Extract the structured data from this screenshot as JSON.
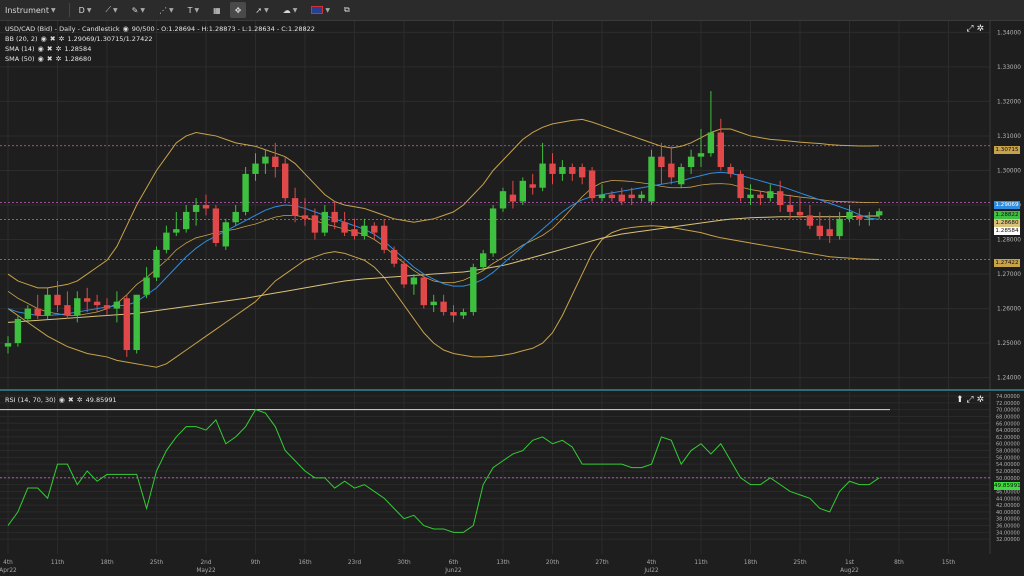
{
  "toolbar": {
    "instrument_label": "Instrument",
    "interval_label": "D",
    "icons": [
      "draw-line-icon",
      "pencil-icon",
      "pattern-icon",
      "text-icon",
      "layout-icon",
      "crosshair-icon",
      "arrow-icon",
      "cloud-icon",
      "flag-uk-icon",
      "screenshot-icon"
    ]
  },
  "legend": {
    "instrument": "USD/CAD (Bid) - Daily - Candlestick",
    "ohlc": "90/500 - O:1.28694 - H:1.28873 - L:1.28634 - C:1.28822",
    "bb_label": "BB (20, 2)",
    "bb_values": "1.29069/1.30715/1.27422",
    "sma14_label": "SMA (14)",
    "sma14_value": "1.28584",
    "sma50_label": "SMA (50)",
    "sma50_value": "1.28680"
  },
  "rsi_legend": {
    "label": "RSI (14, 70, 30)",
    "value": "49.85991"
  },
  "price_tags": {
    "bb_upper": "1.30715",
    "bb_mid": "1.29069",
    "close": "1.28822",
    "sma50": "1.28680",
    "sma14": "1.28584",
    "bb_lower": "1.27422",
    "rsi": "49.85991"
  },
  "colors": {
    "up": "#3fbf3f",
    "down": "#e0484a",
    "bb": "#c8a24a",
    "sma14": "#2f8de0",
    "sma50": "#d9c27a",
    "rsi": "#33cc33",
    "guide": "#c060c0"
  },
  "chart_data": {
    "type": "candlestick",
    "y_ticks": [
      "1.34000",
      "1.33000",
      "1.32000",
      "1.31000",
      "1.30000",
      "1.29000",
      "1.28000",
      "1.27000",
      "1.26000",
      "1.25000",
      "1.24000"
    ],
    "ylim": [
      1.237,
      1.343
    ],
    "x_ticks": [
      {
        "label": "4th",
        "sub": "Apr22",
        "i": 0
      },
      {
        "label": "11th",
        "i": 5
      },
      {
        "label": "18th",
        "i": 10
      },
      {
        "label": "25th",
        "i": 15
      },
      {
        "label": "2nd",
        "sub": "May22",
        "i": 20
      },
      {
        "label": "9th",
        "i": 25
      },
      {
        "label": "16th",
        "i": 30
      },
      {
        "label": "23rd",
        "i": 35
      },
      {
        "label": "30th",
        "i": 40
      },
      {
        "label": "6th",
        "sub": "Jun22",
        "i": 45
      },
      {
        "label": "13th",
        "i": 50
      },
      {
        "label": "20th",
        "i": 55
      },
      {
        "label": "27th",
        "i": 60
      },
      {
        "label": "4th",
        "sub": "Jul22",
        "i": 65
      },
      {
        "label": "11th",
        "i": 70
      },
      {
        "label": "18th",
        "i": 75
      },
      {
        "label": "25th",
        "i": 80
      },
      {
        "label": "1st",
        "sub": "Aug22",
        "i": 85
      },
      {
        "label": "8th",
        "i": 90
      },
      {
        "label": "15th",
        "i": 95
      }
    ],
    "candles": [
      [
        1.249,
        1.252,
        1.247,
        1.25
      ],
      [
        1.25,
        1.258,
        1.249,
        1.257
      ],
      [
        1.257,
        1.261,
        1.256,
        1.26
      ],
      [
        1.26,
        1.264,
        1.257,
        1.258
      ],
      [
        1.258,
        1.266,
        1.257,
        1.264
      ],
      [
        1.264,
        1.268,
        1.259,
        1.261
      ],
      [
        1.261,
        1.265,
        1.257,
        1.258
      ],
      [
        1.258,
        1.265,
        1.256,
        1.263
      ],
      [
        1.263,
        1.266,
        1.259,
        1.262
      ],
      [
        1.262,
        1.264,
        1.259,
        1.261
      ],
      [
        1.261,
        1.263,
        1.258,
        1.26
      ],
      [
        1.26,
        1.265,
        1.256,
        1.262
      ],
      [
        1.263,
        1.264,
        1.246,
        1.248
      ],
      [
        1.248,
        1.264,
        1.247,
        1.264
      ],
      [
        1.264,
        1.272,
        1.263,
        1.269
      ],
      [
        1.269,
        1.278,
        1.268,
        1.277
      ],
      [
        1.277,
        1.284,
        1.276,
        1.282
      ],
      [
        1.282,
        1.288,
        1.281,
        1.283
      ],
      [
        1.283,
        1.29,
        1.282,
        1.288
      ],
      [
        1.288,
        1.292,
        1.284,
        1.29
      ],
      [
        1.29,
        1.293,
        1.287,
        1.289
      ],
      [
        1.289,
        1.29,
        1.278,
        1.279
      ],
      [
        1.278,
        1.286,
        1.277,
        1.285
      ],
      [
        1.285,
        1.29,
        1.284,
        1.288
      ],
      [
        1.288,
        1.301,
        1.287,
        1.299
      ],
      [
        1.299,
        1.305,
        1.297,
        1.302
      ],
      [
        1.302,
        1.306,
        1.299,
        1.304
      ],
      [
        1.304,
        1.308,
        1.298,
        1.301
      ],
      [
        1.302,
        1.304,
        1.291,
        1.292
      ],
      [
        1.292,
        1.295,
        1.285,
        1.287
      ],
      [
        1.287,
        1.292,
        1.284,
        1.286
      ],
      [
        1.287,
        1.289,
        1.28,
        1.282
      ],
      [
        1.282,
        1.29,
        1.281,
        1.288
      ],
      [
        1.288,
        1.291,
        1.283,
        1.285
      ],
      [
        1.285,
        1.288,
        1.281,
        1.282
      ],
      [
        1.283,
        1.286,
        1.28,
        1.281
      ],
      [
        1.281,
        1.286,
        1.28,
        1.284
      ],
      [
        1.284,
        1.285,
        1.28,
        1.282
      ],
      [
        1.284,
        1.286,
        1.276,
        1.277
      ],
      [
        1.277,
        1.278,
        1.272,
        1.273
      ],
      [
        1.273,
        1.274,
        1.266,
        1.267
      ],
      [
        1.267,
        1.27,
        1.264,
        1.269
      ],
      [
        1.269,
        1.27,
        1.26,
        1.261
      ],
      [
        1.261,
        1.264,
        1.259,
        1.262
      ],
      [
        1.262,
        1.264,
        1.258,
        1.259
      ],
      [
        1.259,
        1.261,
        1.256,
        1.258
      ],
      [
        1.258,
        1.26,
        1.257,
        1.259
      ],
      [
        1.259,
        1.273,
        1.258,
        1.272
      ],
      [
        1.272,
        1.277,
        1.271,
        1.276
      ],
      [
        1.276,
        1.29,
        1.275,
        1.289
      ],
      [
        1.289,
        1.295,
        1.288,
        1.294
      ],
      [
        1.293,
        1.297,
        1.289,
        1.291
      ],
      [
        1.291,
        1.298,
        1.29,
        1.297
      ],
      [
        1.296,
        1.299,
        1.293,
        1.295
      ],
      [
        1.295,
        1.308,
        1.294,
        1.302
      ],
      [
        1.302,
        1.305,
        1.296,
        1.299
      ],
      [
        1.299,
        1.303,
        1.297,
        1.301
      ],
      [
        1.301,
        1.302,
        1.297,
        1.299
      ],
      [
        1.301,
        1.302,
        1.296,
        1.298
      ],
      [
        1.3,
        1.301,
        1.291,
        1.292
      ],
      [
        1.292,
        1.296,
        1.291,
        1.293
      ],
      [
        1.293,
        1.294,
        1.291,
        1.292
      ],
      [
        1.293,
        1.295,
        1.29,
        1.291
      ],
      [
        1.293,
        1.295,
        1.29,
        1.292
      ],
      [
        1.292,
        1.294,
        1.291,
        1.293
      ],
      [
        1.291,
        1.306,
        1.29,
        1.304
      ],
      [
        1.304,
        1.308,
        1.296,
        1.301
      ],
      [
        1.302,
        1.307,
        1.296,
        1.298
      ],
      [
        1.296,
        1.302,
        1.295,
        1.301
      ],
      [
        1.301,
        1.306,
        1.299,
        1.304
      ],
      [
        1.304,
        1.312,
        1.301,
        1.305
      ],
      [
        1.305,
        1.323,
        1.304,
        1.311
      ],
      [
        1.311,
        1.315,
        1.3,
        1.301
      ],
      [
        1.301,
        1.302,
        1.298,
        1.299
      ],
      [
        1.299,
        1.3,
        1.291,
        1.292
      ],
      [
        1.292,
        1.296,
        1.29,
        1.293
      ],
      [
        1.293,
        1.294,
        1.29,
        1.292
      ],
      [
        1.292,
        1.296,
        1.291,
        1.294
      ],
      [
        1.294,
        1.297,
        1.288,
        1.29
      ],
      [
        1.29,
        1.293,
        1.286,
        1.288
      ],
      [
        1.288,
        1.292,
        1.286,
        1.287
      ],
      [
        1.287,
        1.29,
        1.283,
        1.284
      ],
      [
        1.284,
        1.288,
        1.28,
        1.281
      ],
      [
        1.283,
        1.287,
        1.279,
        1.281
      ],
      [
        1.281,
        1.288,
        1.28,
        1.286
      ],
      [
        1.286,
        1.29,
        1.285,
        1.288
      ],
      [
        1.287,
        1.289,
        1.284,
        1.286
      ],
      [
        1.286,
        1.288,
        1.284,
        1.286
      ],
      [
        1.287,
        1.289,
        1.286,
        1.2882
      ]
    ],
    "bb_upper": [
      1.27,
      1.268,
      1.267,
      1.266,
      1.266,
      1.2665,
      1.267,
      1.268,
      1.27,
      1.272,
      1.274,
      1.278,
      1.284,
      1.29,
      1.295,
      1.3,
      1.304,
      1.308,
      1.31,
      1.311,
      1.3105,
      1.31,
      1.309,
      1.308,
      1.3075,
      1.307,
      1.306,
      1.305,
      1.304,
      1.302,
      1.299,
      1.296,
      1.293,
      1.291,
      1.29,
      1.2895,
      1.289,
      1.288,
      1.287,
      1.286,
      1.2855,
      1.285,
      1.2855,
      1.286,
      1.287,
      1.288,
      1.29,
      1.293,
      1.296,
      1.3,
      1.303,
      1.306,
      1.309,
      1.311,
      1.3125,
      1.3135,
      1.314,
      1.3145,
      1.3148,
      1.314,
      1.313,
      1.312,
      1.311,
      1.31,
      1.309,
      1.308,
      1.307,
      1.3065,
      1.307,
      1.308,
      1.3095,
      1.311,
      1.312,
      1.312,
      1.311,
      1.31,
      1.3095,
      1.309,
      1.3088,
      1.3085,
      1.3082,
      1.308,
      1.3078,
      1.3075,
      1.3073,
      1.3072,
      1.3071,
      1.3071,
      1.30715
    ],
    "bb_lower": [
      1.26,
      1.258,
      1.256,
      1.254,
      1.252,
      1.2505,
      1.249,
      1.248,
      1.247,
      1.2465,
      1.246,
      1.245,
      1.2445,
      1.244,
      1.2435,
      1.243,
      1.244,
      1.246,
      1.248,
      1.25,
      1.252,
      1.254,
      1.256,
      1.258,
      1.26,
      1.262,
      1.265,
      1.268,
      1.27,
      1.272,
      1.274,
      1.275,
      1.276,
      1.2765,
      1.276,
      1.275,
      1.274,
      1.272,
      1.269,
      1.265,
      1.261,
      1.257,
      1.253,
      1.25,
      1.248,
      1.247,
      1.2465,
      1.246,
      1.246,
      1.2462,
      1.2465,
      1.247,
      1.2478,
      1.2485,
      1.25,
      1.253,
      1.258,
      1.264,
      1.27,
      1.276,
      1.28,
      1.282,
      1.283,
      1.2835,
      1.2838,
      1.284,
      1.2838,
      1.2835,
      1.283,
      1.2825,
      1.282,
      1.2812,
      1.2805,
      1.28,
      1.2795,
      1.279,
      1.2785,
      1.278,
      1.2775,
      1.277,
      1.2765,
      1.276,
      1.2755,
      1.275,
      1.2748,
      1.2746,
      1.2744,
      1.2743,
      1.27422
    ],
    "bb_mid": [
      1.265,
      1.263,
      1.2615,
      1.26,
      1.259,
      1.2585,
      1.258,
      1.258,
      1.2585,
      1.259,
      1.26,
      1.2615,
      1.264,
      1.267,
      1.269,
      1.2715,
      1.274,
      1.277,
      1.279,
      1.2805,
      1.2812,
      1.282,
      1.2825,
      1.283,
      1.2838,
      1.2845,
      1.2855,
      1.2865,
      1.287,
      1.287,
      1.2865,
      1.2855,
      1.2845,
      1.2838,
      1.283,
      1.2822,
      1.2815,
      1.28,
      1.278,
      1.2755,
      1.2732,
      1.271,
      1.2692,
      1.268,
      1.2675,
      1.2675,
      1.2682,
      1.2695,
      1.271,
      1.2731,
      1.2748,
      1.2765,
      1.2784,
      1.2798,
      1.2812,
      1.2832,
      1.286,
      1.2892,
      1.2924,
      1.295,
      1.2965,
      1.2971,
      1.297,
      1.2968,
      1.2964,
      1.296,
      1.2954,
      1.295,
      1.295,
      1.2952,
      1.2958,
      1.2961,
      1.2962,
      1.296,
      1.2952,
      1.2945,
      1.294,
      1.2935,
      1.2931,
      1.2927,
      1.2923,
      1.292,
      1.2916,
      1.2912,
      1.291,
      1.2909,
      1.2908,
      1.2907,
      1.29069
    ],
    "sma14": [
      1.26,
      1.259,
      1.2585,
      1.258,
      1.258,
      1.2582,
      1.2585,
      1.259,
      1.2595,
      1.26,
      1.2605,
      1.2608,
      1.261,
      1.262,
      1.264,
      1.266,
      1.269,
      1.272,
      1.275,
      1.2775,
      1.2795,
      1.281,
      1.2825,
      1.284,
      1.2855,
      1.287,
      1.2885,
      1.2895,
      1.29,
      1.2898,
      1.289,
      1.288,
      1.287,
      1.286,
      1.285,
      1.284,
      1.283,
      1.2815,
      1.2795,
      1.277,
      1.2745,
      1.272,
      1.27,
      1.2685,
      1.2672,
      1.2665,
      1.2665,
      1.2672,
      1.2685,
      1.2705,
      1.273,
      1.2755,
      1.278,
      1.2805,
      1.283,
      1.2855,
      1.288,
      1.29,
      1.2915,
      1.2925,
      1.293,
      1.2935,
      1.294,
      1.2945,
      1.295,
      1.2955,
      1.296,
      1.2965,
      1.297,
      1.2978,
      1.2985,
      1.2992,
      1.2995,
      1.2992,
      1.2985,
      1.2978,
      1.297,
      1.2962,
      1.2955,
      1.2945,
      1.2935,
      1.2925,
      1.2915,
      1.2905,
      1.2895,
      1.2885,
      1.2872,
      1.2862,
      1.28584
    ],
    "sma50": [
      1.256,
      1.2562,
      1.2564,
      1.2566,
      1.2568,
      1.257,
      1.2572,
      1.2574,
      1.2576,
      1.2578,
      1.258,
      1.2582,
      1.2584,
      1.2586,
      1.259,
      1.2594,
      1.2598,
      1.2602,
      1.2606,
      1.261,
      1.2614,
      1.2618,
      1.2622,
      1.2626,
      1.263,
      1.2635,
      1.264,
      1.2645,
      1.265,
      1.2655,
      1.266,
      1.2665,
      1.267,
      1.2675,
      1.268,
      1.2683,
      1.2686,
      1.2688,
      1.269,
      1.2692,
      1.2694,
      1.2696,
      1.2698,
      1.27,
      1.2702,
      1.2704,
      1.2706,
      1.271,
      1.2715,
      1.272,
      1.2725,
      1.2732,
      1.274,
      1.2748,
      1.2756,
      1.2764,
      1.2772,
      1.278,
      1.2788,
      1.2796,
      1.2804,
      1.281,
      1.2816,
      1.282,
      1.2824,
      1.2828,
      1.2832,
      1.2836,
      1.284,
      1.2844,
      1.2848,
      1.2852,
      1.2856,
      1.2859,
      1.2861,
      1.2863,
      1.2864,
      1.2865,
      1.2866,
      1.2866,
      1.2866,
      1.2866,
      1.2866,
      1.2866,
      1.2866,
      1.2867,
      1.2867,
      1.2868,
      1.2868
    ],
    "rsi": {
      "ylim": [
        30,
        74
      ],
      "y_ticks": [
        "74.00000",
        "72.00000",
        "70.00000",
        "68.00000",
        "66.00000",
        "64.00000",
        "62.00000",
        "60.00000",
        "58.00000",
        "56.00000",
        "54.00000",
        "52.00000",
        "50.00000",
        "48.00000",
        "46.00000",
        "44.00000",
        "42.00000",
        "40.00000",
        "38.00000",
        "36.00000",
        "34.00000",
        "32.00000"
      ],
      "overbought": 70,
      "oversold": 30,
      "values": [
        36,
        40,
        47,
        47,
        44,
        54,
        54,
        48,
        52,
        49,
        51,
        51,
        51,
        51,
        41,
        52,
        58,
        62,
        65,
        65,
        64,
        67,
        60,
        62,
        65,
        70,
        69,
        65,
        58,
        55,
        52,
        50,
        50,
        47,
        49,
        47,
        48,
        46,
        44,
        41,
        38,
        39,
        36,
        35,
        35,
        34,
        34,
        36,
        48,
        53,
        55,
        57,
        58,
        61,
        62,
        60,
        61,
        59,
        54,
        54,
        54,
        54,
        54,
        53,
        53,
        54,
        62,
        61,
        54,
        58,
        60,
        57,
        60,
        55,
        50,
        48,
        48,
        50,
        48,
        46,
        45,
        44,
        41,
        40,
        46,
        49,
        48,
        48,
        50
      ]
    }
  }
}
